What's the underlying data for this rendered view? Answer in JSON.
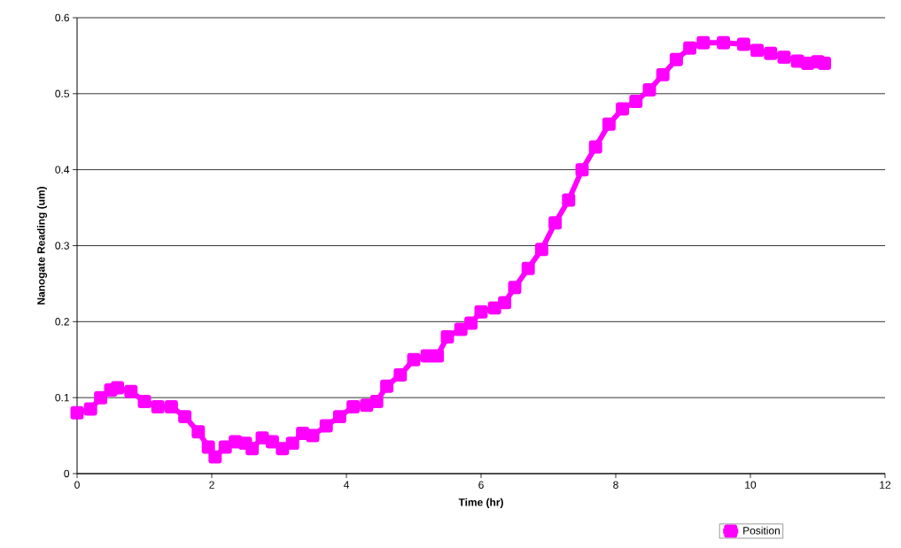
{
  "chart_data": {
    "type": "line",
    "xlabel": "Time (hr)",
    "ylabel": "Nanogate Reading (um)",
    "xlim": [
      0,
      12
    ],
    "xticks": [
      0,
      2,
      4,
      6,
      8,
      10,
      12
    ],
    "ylim": [
      0,
      0.6
    ],
    "yticks": [
      0,
      0.1,
      0.2,
      0.3,
      0.4,
      0.5,
      0.6
    ],
    "grid": "y",
    "legend": "bottom right",
    "marker": "square",
    "line_style": "solid",
    "series": [
      {
        "name": "Position",
        "color": "#ff00ff",
        "x": [
          0,
          0.2,
          0.35,
          0.5,
          0.6,
          0.8,
          1.0,
          1.2,
          1.4,
          1.6,
          1.8,
          1.95,
          2.05,
          2.2,
          2.35,
          2.5,
          2.6,
          2.75,
          2.9,
          3.05,
          3.2,
          3.35,
          3.5,
          3.7,
          3.9,
          4.1,
          4.3,
          4.45,
          4.6,
          4.8,
          5.0,
          5.2,
          5.35,
          5.5,
          5.7,
          5.85,
          6.0,
          6.2,
          6.35,
          6.5,
          6.7,
          6.9,
          7.1,
          7.3,
          7.5,
          7.7,
          7.9,
          8.1,
          8.3,
          8.5,
          8.7,
          8.9,
          9.1,
          9.3,
          9.6,
          9.9,
          10.1,
          10.3,
          10.5,
          10.7,
          10.85,
          11.0,
          11.1
        ],
        "values": [
          0.08,
          0.085,
          0.1,
          0.11,
          0.113,
          0.108,
          0.095,
          0.088,
          0.088,
          0.075,
          0.055,
          0.035,
          0.022,
          0.035,
          0.042,
          0.04,
          0.033,
          0.047,
          0.042,
          0.033,
          0.04,
          0.053,
          0.05,
          0.063,
          0.075,
          0.088,
          0.09,
          0.095,
          0.115,
          0.13,
          0.15,
          0.155,
          0.155,
          0.18,
          0.19,
          0.198,
          0.213,
          0.218,
          0.225,
          0.245,
          0.27,
          0.295,
          0.33,
          0.36,
          0.4,
          0.43,
          0.46,
          0.48,
          0.49,
          0.505,
          0.525,
          0.545,
          0.56,
          0.567,
          0.567,
          0.565,
          0.557,
          0.553,
          0.548,
          0.543,
          0.54,
          0.542,
          0.54
        ]
      }
    ]
  }
}
